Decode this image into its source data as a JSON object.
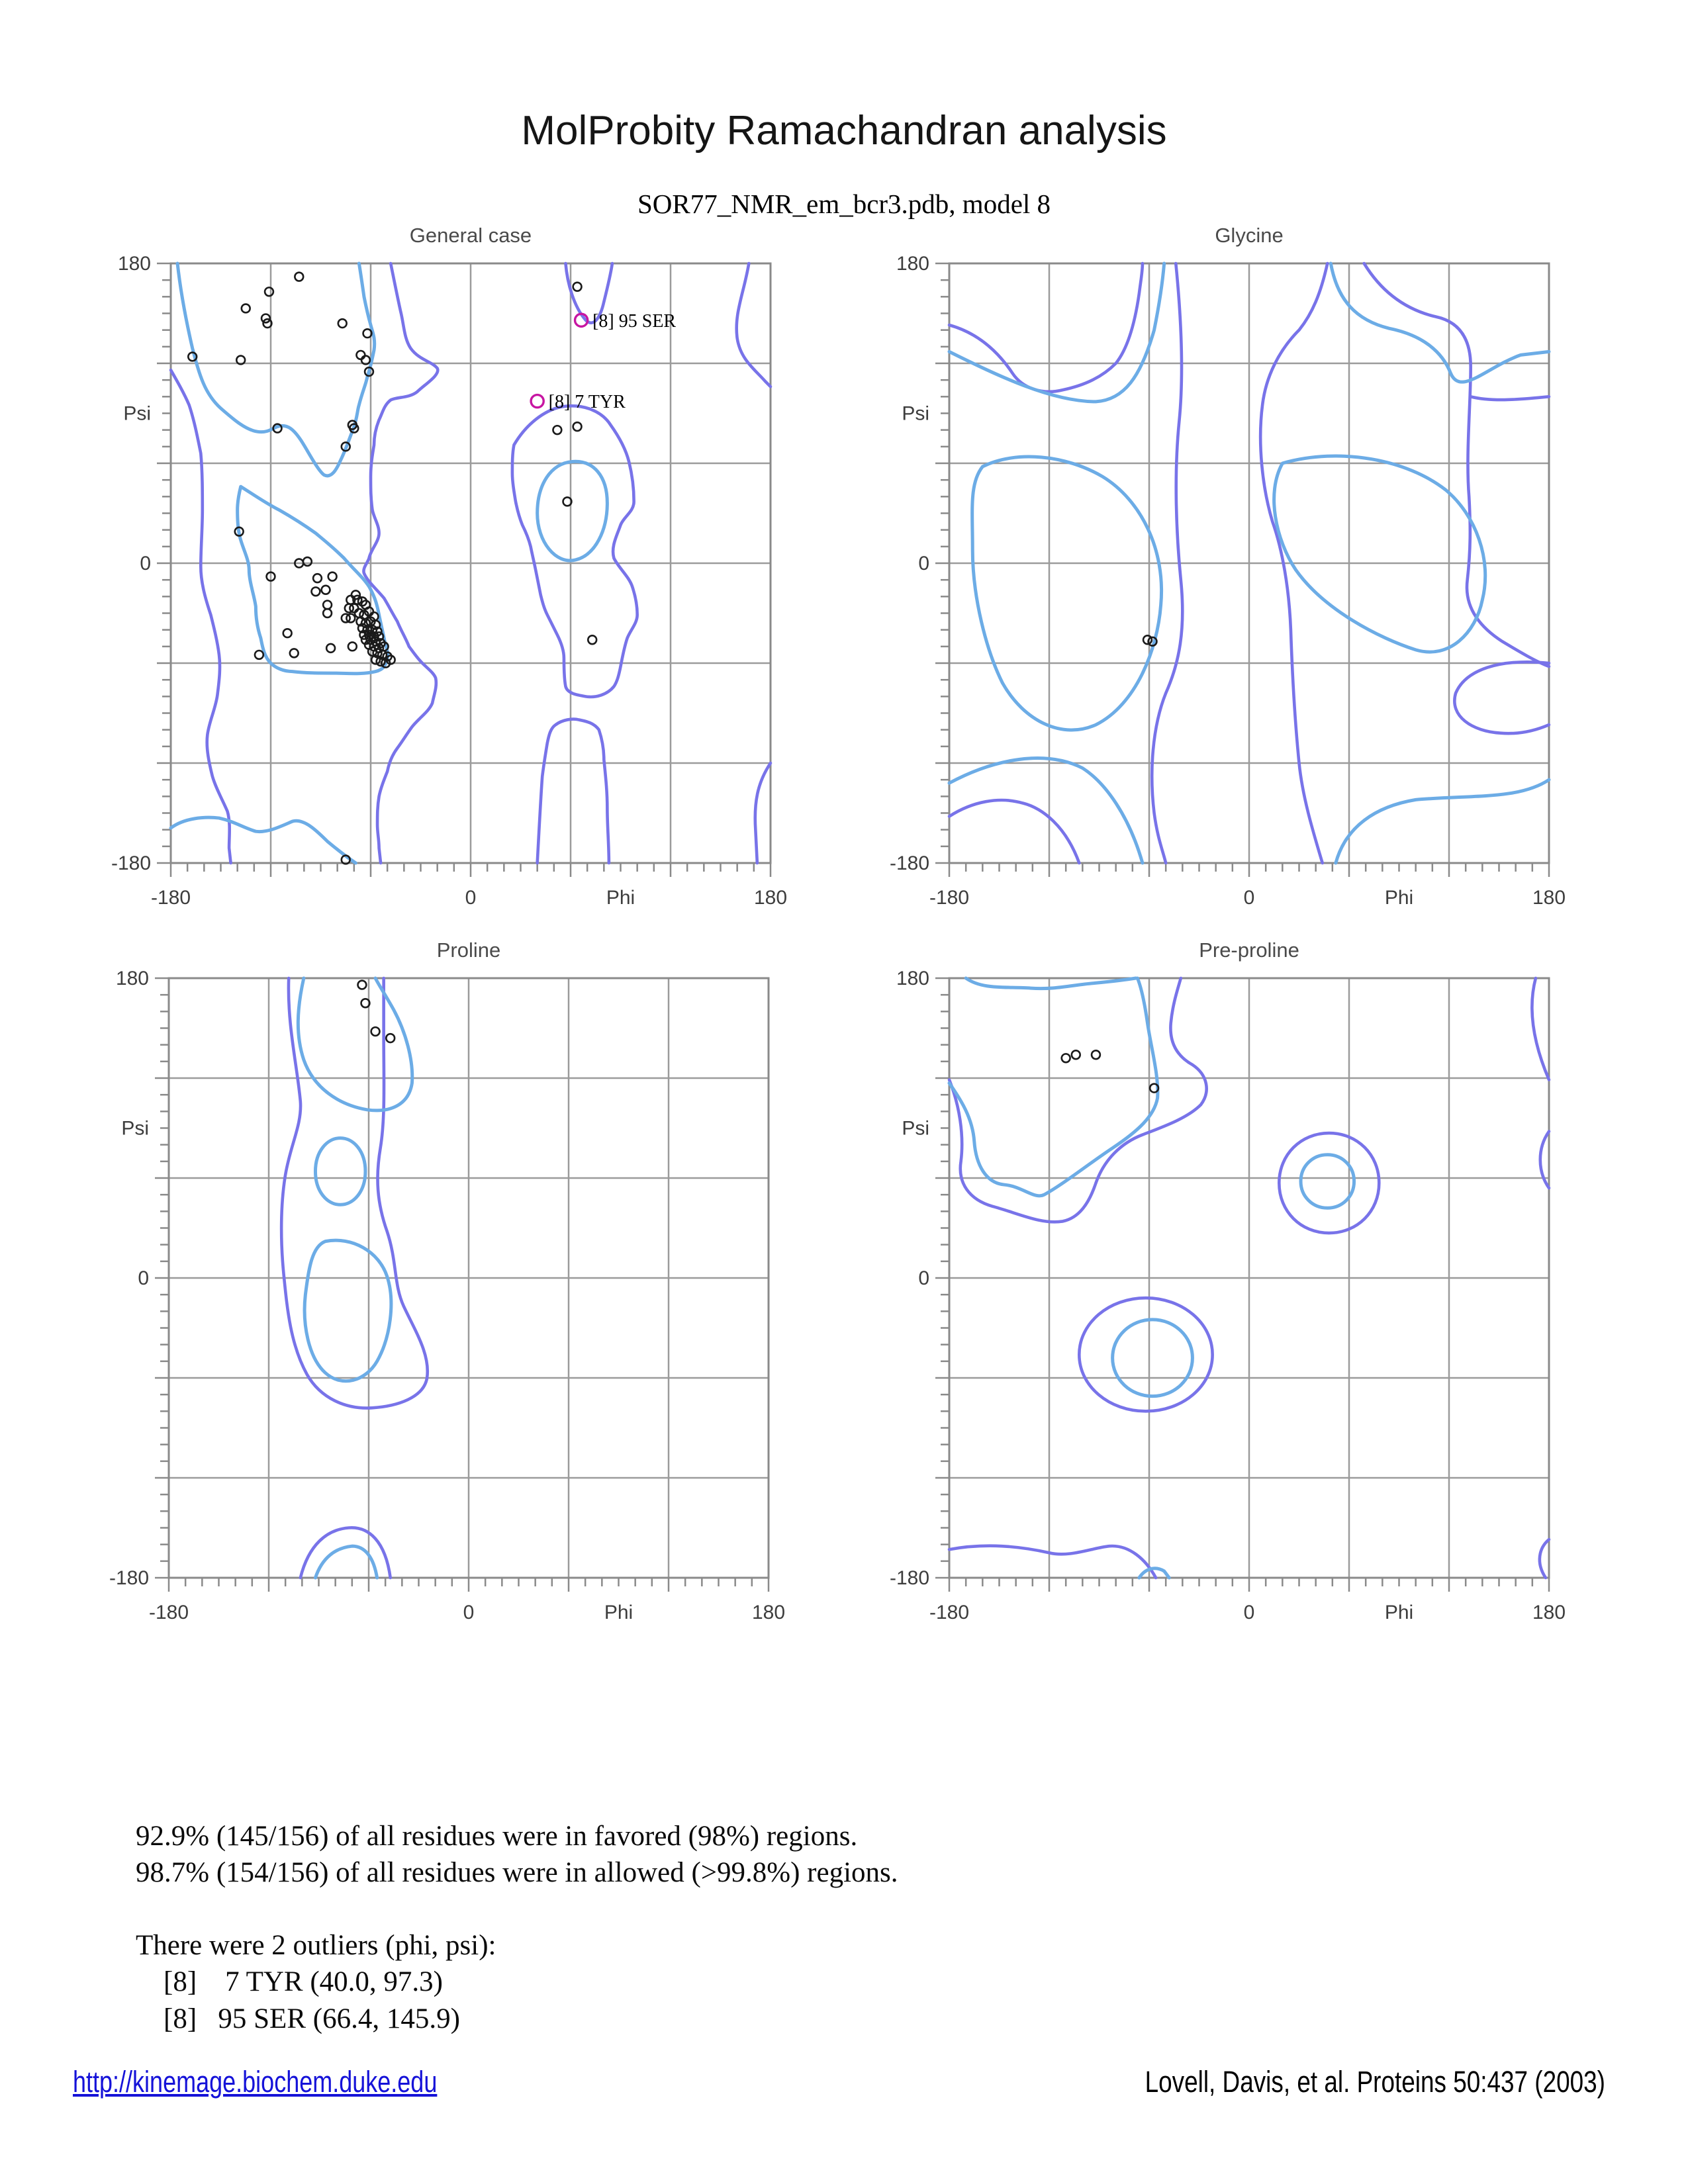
{
  "page": {
    "title": "MolProbity Ramachandran analysis",
    "subtitle": "SOR77_NMR_em_bcr3.pdb, model 8"
  },
  "colors": {
    "favored_contour": "#6cace6",
    "allowed_contour": "#7873e9",
    "grid": "#9b9b9b",
    "axis": "#8a8a8a",
    "tick": "#8a8a8a",
    "point": "#1a1a1a",
    "outlier": "#c716a2",
    "label": "#3d3d3d",
    "plot_title": "#4a4a4a",
    "link": "#1512d8"
  },
  "axis": {
    "x_min": -180,
    "x_max": 180,
    "y_min": -180,
    "y_max": 180,
    "grid_lines": [
      -120,
      -60,
      0,
      60,
      120
    ],
    "tick_interval": 10,
    "major_tick_interval": 60,
    "x_axis_title": "Phi",
    "y_axis_title": "Psi",
    "x_tick_labels": [
      {
        "v": -180,
        "t": "-180"
      },
      {
        "v": 0,
        "t": "0"
      },
      {
        "v": 90,
        "t": "Phi"
      },
      {
        "v": 180,
        "t": "180"
      }
    ],
    "y_tick_labels": [
      {
        "v": 180,
        "t": "180"
      },
      {
        "v": 90,
        "t": "Psi"
      },
      {
        "v": 0,
        "t": "0"
      },
      {
        "v": -180,
        "t": "-180"
      }
    ]
  },
  "chart_data": [
    {
      "type": "scatter",
      "id": "general-case",
      "title": "General case",
      "xlabel": "Phi",
      "ylabel": "Psi",
      "xlim": [
        -180,
        180
      ],
      "ylim": [
        -180,
        180
      ],
      "points": [
        [
          -103,
          172
        ],
        [
          -121,
          163
        ],
        [
          -135,
          153
        ],
        [
          -123,
          147
        ],
        [
          -122,
          144
        ],
        [
          -77,
          144
        ],
        [
          -62,
          138
        ],
        [
          -167,
          124
        ],
        [
          -138,
          122
        ],
        [
          -66,
          125
        ],
        [
          -63,
          122
        ],
        [
          -61,
          115
        ],
        [
          -116,
          81
        ],
        [
          -71,
          83
        ],
        [
          -70,
          81
        ],
        [
          -75,
          70
        ],
        [
          -139,
          19
        ],
        [
          -103,
          0
        ],
        [
          -98,
          1
        ],
        [
          -120,
          -8
        ],
        [
          -92,
          -9
        ],
        [
          -83,
          -8
        ],
        [
          -93,
          -17
        ],
        [
          -87,
          -16
        ],
        [
          -86,
          -25
        ],
        [
          -86,
          -30
        ],
        [
          -110,
          -42
        ],
        [
          -127,
          -55
        ],
        [
          -106,
          -54
        ],
        [
          -84,
          -51
        ],
        [
          -71,
          -50
        ],
        [
          -48,
          -58
        ],
        [
          -69,
          -19
        ],
        [
          -72,
          -22
        ],
        [
          -68,
          -22
        ],
        [
          -73,
          -27
        ],
        [
          -70,
          -27
        ],
        [
          -65,
          -23
        ],
        [
          -63,
          -25
        ],
        [
          -75,
          -33
        ],
        [
          -72,
          -33
        ],
        [
          -67,
          -30
        ],
        [
          -64,
          -31
        ],
        [
          -61,
          -29
        ],
        [
          -58,
          -32
        ],
        [
          -66,
          -35
        ],
        [
          -63,
          -36
        ],
        [
          -60,
          -35
        ],
        [
          -57,
          -37
        ],
        [
          -65,
          -39
        ],
        [
          -62,
          -40
        ],
        [
          -59,
          -40
        ],
        [
          -56,
          -41
        ],
        [
          -64,
          -43
        ],
        [
          -61,
          -43
        ],
        [
          -58,
          -44
        ],
        [
          -55,
          -44
        ],
        [
          -63,
          -46
        ],
        [
          -60,
          -46
        ],
        [
          -57,
          -47
        ],
        [
          -54,
          -48
        ],
        [
          -61,
          -49
        ],
        [
          -58,
          -50
        ],
        [
          -55,
          -51
        ],
        [
          -52,
          -50
        ],
        [
          -59,
          -53
        ],
        [
          -56,
          -54
        ],
        [
          -53,
          -55
        ],
        [
          -50,
          -56
        ],
        [
          -57,
          -58
        ],
        [
          -54,
          -59
        ],
        [
          -51,
          -60
        ],
        [
          64,
          166
        ],
        [
          52,
          80
        ],
        [
          64,
          82
        ],
        [
          58,
          37
        ],
        [
          73,
          -46
        ],
        [
          -75,
          -178
        ]
      ],
      "outliers": [
        {
          "phi": 66.4,
          "psi": 145.9,
          "label": "[8]   95 SER"
        },
        {
          "phi": 40.0,
          "psi": 97.3,
          "label": "[8]    7 TYR"
        }
      ],
      "contours": {
        "favored": [
          "M4 0 C6 18 10 38 13 51 C17 66 20 78 30 87 C38 94 45 100 52 101 C58 102 61 99 64 98 C70 96 74 100 78 106 C82 112 88 124 92 127 C96 129 99 125 102 118 C105 112 108 103 110 98 C112 92 112 88 113 85 C115 77 117 73 118 68 C120 62 121 57 122 52 C123 45 121 41 120 37 C118 30 117 25 116 20 C115 13 114 6 113 0",
          "M42 134 C50 139 57 144 65 148 C72 152 80 157 87 162 C93 167 98 171 104 177 C110 184 115 188 119 194 C123 201 124 206 125 211 C126 216 127 220 128 225 C129 230 131 234 130 237 C129 242 127 244 123 245 C115 247 105 246 97 246 C89 246 81 246 73 245 C68 245 63 243 60 240 C56 236 55 230 54 225 C52 219 51 212 51 206 C50 199 47 191 47 184 C47 177 42 169 41 162 C40 157 40 152 40 148 C40 143 41 138 42 134 Z",
          "M220 150 C220 133 228 120 241 119 C254 118 262 128 262 144 C262 160 255 175 243 178 C231 181 220 167 220 150 Z",
          "M0 339 C8 333 20 332 29 333 C38 335 44 339 51 341 C58 342 66 338 73 335 C80 333 88 341 94 347 C100 352 105 356 111 360"
        ],
        "allowed": [
          "M0 64 C4 71 8 78 11 85 C14 94 16 104 18 114 C19 125 19 137 19 148 C19 159 18 171 18 182 C18 192 21 202 24 211 C26 219 28 227 29 235 C30 243 29 251 28 259 C27 267 23 275 22 283 C21 291 23 300 25 308 C27 315 31 322 34 329 C36 336 35 344 35 351 L36 360",
          "M132 0 C134 10 136 20 138 29 C140 37 140 45 144 51 C149 58 157 59 160 63 C162 67 152 73 148 77 C143 81 136 80 132 82 C128 85 127 90 125 94 C123 99 122 104 122 109 C121 115 120 121 120 128 C120 135 120 141 121 148 C122 153 125 157 125 162 C125 167 120 172 119 177 C118 180 115 183 116 186 C118 191 124 196 128 201 C131 206 133 210 136 215 C138 220 141 225 143 230 C146 234 148 237 151 240 C154 243 158 246 159 249 C160 254 158 259 157 264 C155 269 149 273 145 278 C142 282 139 287 136 291 C133 295 131 300 130 305 C128 310 126 315 125 320 C124 326 124 331 124 337 C124 342 125 346 125 351 L126 360",
          "M206 109 C213 97 224 88 235 86 C248 84 259 89 264 97 C269 104 273 111 275 119 C277 127 278 135 278 143 C278 149 272 152 270 157 C268 163 264 170 266 177 C269 183 275 188 277 194 C279 200 280 205 280 211 C280 216 276 220 274 225 C272 231 271 237 270 242 C269 247 268 251 266 254 C262 259 255 261 249 260 C243 259 238 258 237 254 C236 249 236 242 236 237 C236 232 234 227 232 223 C230 219 228 215 226 211 C224 207 223 203 222 199 C221 194 220 189 219 184 C218 179 217 175 216 170 C215 166 213 161 211 157 C209 152 208 148 207 143 C206 137 205 131 205 126 C205 120 205 114 206 109 Z",
          "M220 360 C221 341 222 322 223 308 C224 300 225 294 226 288 C227 283 228 279 231 277 C235 274 241 273 245 274 C250 275 254 276 257 280 C259 286 260 292 260 298 C261 308 262 317 262 327 C262 338 263 349 263 360",
          "M237 0 C238 12 242 26 249 34 C254 39 258 32 260 23 C262 15 264 7 265 0",
          "M347 0 C344 18 338 30 340 45 C342 58 351 64 357 71 L360 74",
          "M360 300 C352 312 350 324 351 340 L352 360"
        ]
      }
    },
    {
      "type": "scatter",
      "id": "glycine",
      "title": "Glycine",
      "xlabel": "Phi",
      "ylabel": "Psi",
      "xlim": [
        -180,
        180
      ],
      "ylim": [
        -180,
        180
      ],
      "points": [
        [
          -61,
          -46
        ],
        [
          -58,
          -47
        ]
      ],
      "outliers": [],
      "contours": {
        "favored": [
          "M0 53 C30 68 62 83 88 83 C105 82 115 68 123 40 C126 25 128 12 129 0",
          "M20 122 C40 112 70 115 92 128 C115 142 130 172 127 205 C125 232 112 265 88 277 C68 286 45 275 32 252 C22 232 14 200 14 172 C14 148 12 132 20 122 Z",
          "M0 312 C28 297 58 292 80 303 C94 312 108 332 116 360",
          "M229 0 C233 22 244 34 264 39 C284 43 296 53 301 66 C307 80 323 62 343 55 L360 53",
          "M200 120 C235 110 275 118 298 136 C316 151 326 178 320 202 C316 222 300 238 280 232 C258 225 225 208 208 184 C196 166 190 138 200 120 Z",
          "M232 360 C238 338 256 326 280 322 C314 319 342 322 360 310"
        ],
        "allowed": [
          "M0 37 C18 42 30 54 38 66 C44 75 56 79 68 76 C82 73 92 68 100 60 C108 50 112 32 114 18 C115 10 116 5 116 0",
          "M136 0 C139 30 141 65 138 95 C135 125 136 160 139 190 C142 220 138 240 130 258 C122 278 120 305 123 330 C125 345 128 352 130 360",
          "M227 0 C223 18 218 30 210 40 C198 52 190 68 188 85 C185 108 188 135 194 155 C200 172 204 195 205 220 C206 250 208 280 210 300 C212 320 218 340 224 360",
          "M249 0 C260 18 275 28 292 32 C306 35 313 45 313 62 C313 85 310 115 312 140 C313 158 313 172 311 190 C309 206 318 218 332 227 C342 233 352 239 360 242",
          "M313 80 C325 83 340 82 360 80",
          "M360 240 C330 237 310 244 304 258 C300 272 314 281 331 282 C343 283 353 280 360 277",
          "M0 332 C14 323 30 320 44 324 C56 327 70 338 78 360"
        ]
      }
    },
    {
      "type": "scatter",
      "id": "proline",
      "title": "Proline",
      "xlabel": "Phi",
      "ylabel": "Psi",
      "xlim": [
        -180,
        180
      ],
      "ylim": [
        -180,
        180
      ],
      "points": [
        [
          -64,
          176
        ],
        [
          -62,
          165
        ],
        [
          -56,
          148
        ],
        [
          -47,
          144
        ]
      ],
      "outliers": [],
      "contours": {
        "favored": [
          "M81 0 C77 18 76 34 81 49 C87 66 102 76 119 79 C133 81 144 76 146 63 C147 49 142 32 135 19 C130 10 126 4 124 0",
          "M88 116 C88 104 95 96 103 96 C111 96 118 104 118 116 C118 128 111 136 103 136 C95 136 88 128 88 116 Z",
          "M94 158 C110 155 126 164 131 179 C136 194 133 216 125 230 C118 242 104 246 94 237 C84 228 80 208 82 190 C84 174 86 161 94 158 Z",
          "M88 360 C92 348 100 342 110 341 C118 341 123 348 125 360"
        ],
        "allowed": [
          "M72 0 C71 28 77 52 79 74 C80 88 73 100 70 118 C67 136 67 158 69 178 C71 198 73 220 83 238 C91 252 106 259 122 258 C137 257 153 252 155 240 C157 226 148 212 141 197 C135 184 137 170 131 152 C125 135 124 120 127 102 C130 84 129 60 129 36 C129 22 129 10 129 0",
          "M79 360 C84 340 95 331 108 330 C120 329 130 338 133 360"
        ]
      }
    },
    {
      "type": "scatter",
      "id": "pre-proline",
      "title": "Pre-proline",
      "xlabel": "Phi",
      "ylabel": "Psi",
      "xlim": [
        -180,
        180
      ],
      "ylim": [
        -180,
        180
      ],
      "points": [
        [
          -110,
          132
        ],
        [
          -104,
          134
        ],
        [
          -92,
          134
        ],
        [
          -57,
          114
        ]
      ],
      "outliers": [],
      "contours": {
        "favored": [
          "M10 0 C20 7 34 5 49 6 C64 7 74 4 87 3 C97 2 106 1 112 0",
          "M0 63 C7 73 14 84 15 98 C16 112 22 123 33 124 C44 125 51 133 57 130 C68 124 83 112 98 102 C113 92 123 83 125 72 C126 59 121 41 119 27 C117 13 115 5 113 0",
          "M211 122 C211 131 218 138 227 138 C236 138 243 131 243 122 C243 113 236 106 227 106 C218 106 211 113 211 122 Z",
          "M98 228 C98 241 109 251 122 251 C135 251 146 241 146 228 C146 215 135 205 122 205 C109 205 98 215 98 228 Z",
          "M114 360 C118 354 124 353 129 356 L132 360"
        ],
        "allowed": [
          "M0 61 C6 76 9 94 7 110 C5 123 12 133 26 137 C41 141 55 148 68 146 C78 144 84 135 88 123 C93 109 103 99 116 94 C129 89 143 84 151 76 C157 68 155 58 146 52 C137 47 132 39 133 27 C134 16 137 7 139 0",
          "M198 123 C198 140 211 153 228 153 C245 153 258 140 258 123 C258 106 245 93 228 93 C211 93 198 106 198 123 Z",
          "M78 226 C78 245 96 260 118 260 C140 260 158 245 158 226 C158 207 140 192 118 192 C96 192 78 207 78 226 Z",
          "M0 343 C22 339 42 341 60 345 C72 348 86 342 96 341 C108 340 118 349 124 360",
          "M352 0 C347 19 351 40 360 61",
          "M360 92 C353 102 353 116 360 126",
          "M358 360 C352 351 354 342 360 337"
        ]
      }
    }
  ],
  "summary": {
    "line1": "92.9% (145/156) of all residues were in favored (98%) regions.",
    "line2": "98.7% (154/156) of all residues were in allowed (>99.8%) regions.",
    "line3": "There were 2 outliers (phi, psi):",
    "outlier1": "[8]    7 TYR (40.0, 97.3)",
    "outlier2": "[8]   95 SER (66.4, 145.9)"
  },
  "footer": {
    "link": "http://kinemage.biochem.duke.edu",
    "citation": "Lovell, Davis, et al. Proteins 50:437 (2003)"
  }
}
